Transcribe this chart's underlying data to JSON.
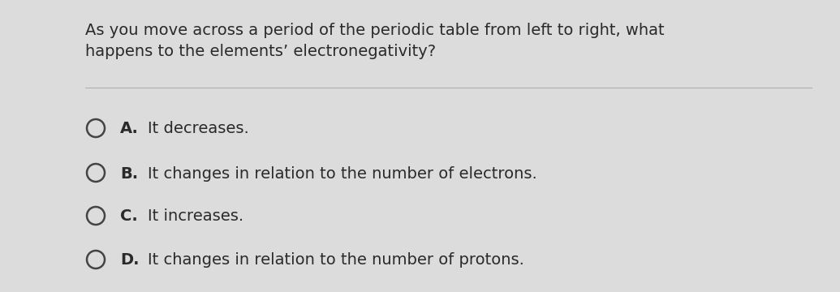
{
  "background_color": "#dcdcdc",
  "question_line1": "As you move across a period of the periodic table from left to right, what",
  "question_line2": "happens to the elements’ electronegativity?",
  "question_fontsize": 14,
  "question_color": "#2a2a2a",
  "divider_color": "#b0b0b0",
  "options": [
    {
      "label": "A.",
      "text": "  It decreases."
    },
    {
      "label": "B.",
      "text": "  It changes in relation to the number of electrons."
    },
    {
      "label": "C.",
      "text": "  It increases."
    },
    {
      "label": "D.",
      "text": "  It changes in relation to the number of protons."
    }
  ],
  "option_fontsize": 14,
  "option_color": "#2a2a2a",
  "circle_edge_color": "#444444",
  "circle_face_color": "#dcdcdc",
  "circle_linewidth": 1.8
}
